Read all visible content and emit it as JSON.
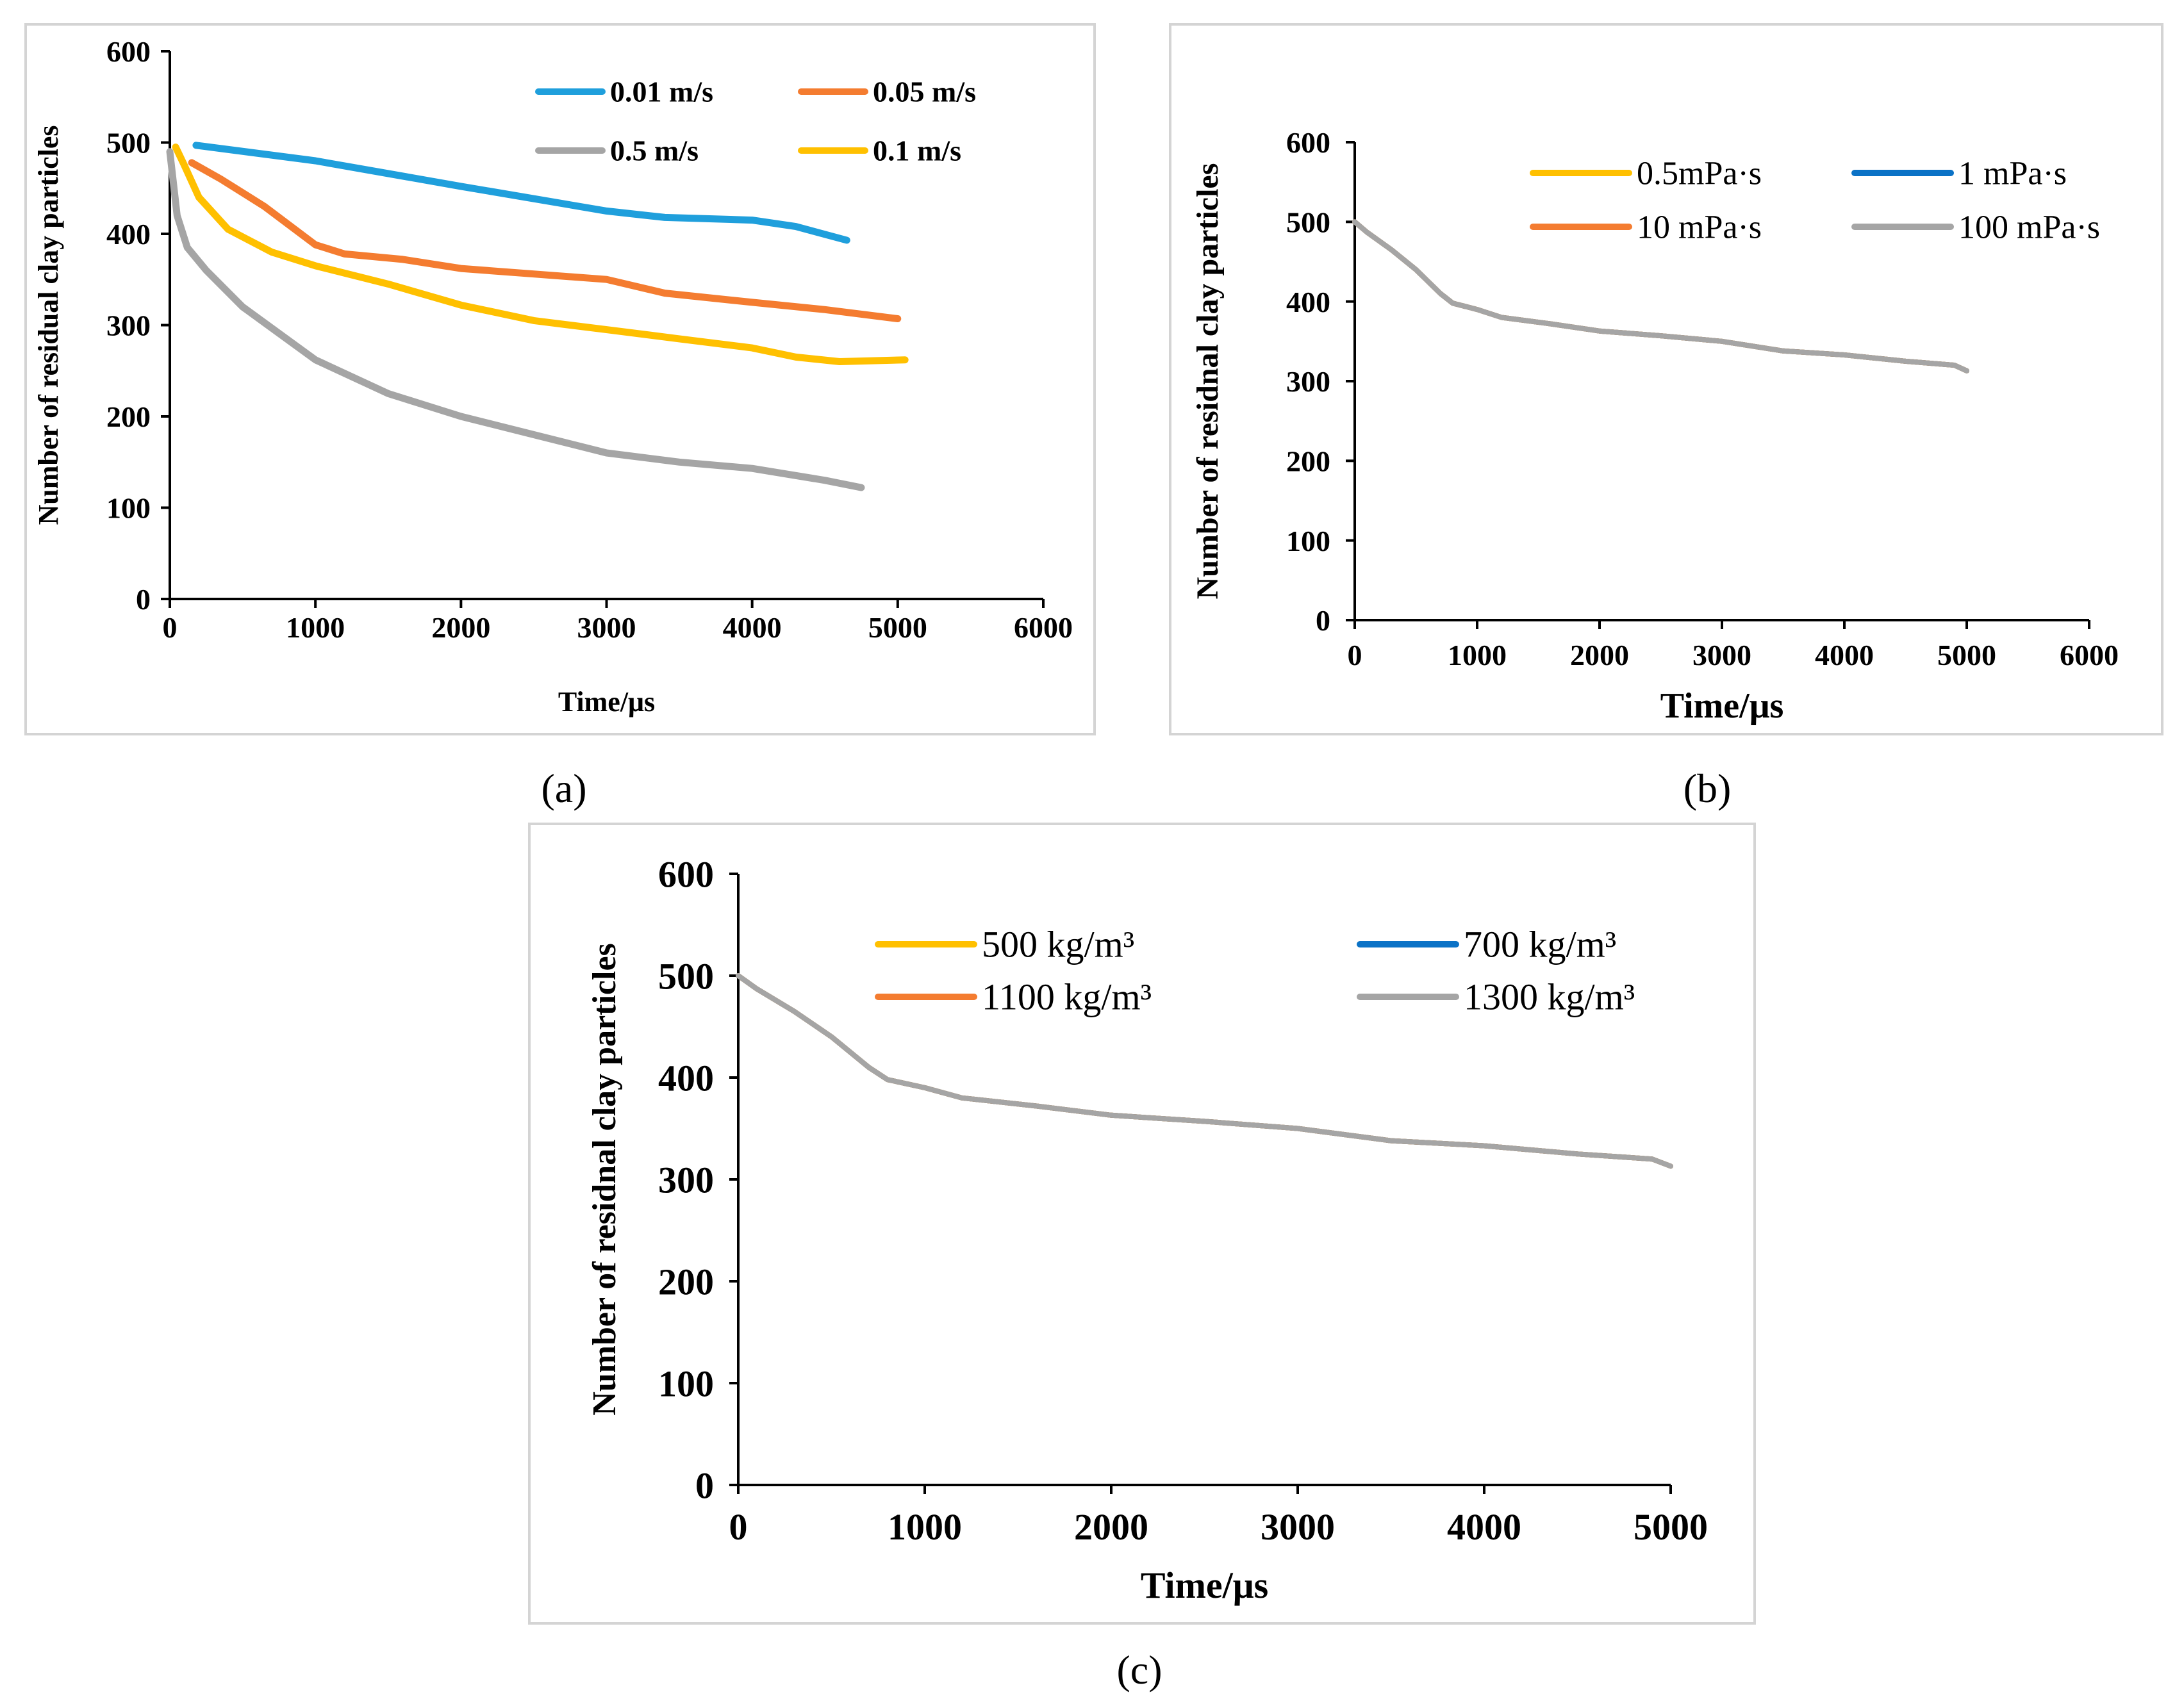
{
  "colors": {
    "blue_a": "#1f9fdc",
    "orange": "#f47c30",
    "gray": "#a5a5a5",
    "yellow": "#ffc000",
    "blue_dark": "#0b72c6",
    "frame": "#d4d4d4"
  },
  "chart_data": [
    {
      "id": "a",
      "panel_label": "(a)",
      "type": "line",
      "title": "",
      "xlabel": "Time/μs",
      "ylabel": "Number of residual clay particles",
      "xlim": [
        0,
        6000
      ],
      "ylim": [
        0,
        600
      ],
      "x_ticks": [
        "0",
        "1000",
        "2000",
        "3000",
        "4000",
        "5000",
        "6000"
      ],
      "y_ticks": [
        "0",
        "100",
        "200",
        "300",
        "400",
        "500",
        "600"
      ],
      "legend": [
        "0.01 m/s",
        "0.05 m/s",
        "0.5 m/s",
        "0.1 m/s"
      ],
      "series": [
        {
          "name": "0.01 m/s",
          "color": "#1f9fdc",
          "x": [
            180,
            1000,
            2000,
            3000,
            3400,
            4000,
            4300,
            4650
          ],
          "y": [
            497,
            480,
            452,
            425,
            418,
            415,
            408,
            393
          ]
        },
        {
          "name": "0.05 m/s",
          "color": "#f47c30",
          "x": [
            150,
            350,
            650,
            1000,
            1200,
            1600,
            2000,
            2500,
            3000,
            3400,
            4000,
            4500,
            5000
          ],
          "y": [
            478,
            460,
            430,
            388,
            378,
            372,
            362,
            356,
            350,
            335,
            325,
            317,
            307
          ]
        },
        {
          "name": "0.5 m/s",
          "color": "#a5a5a5",
          "x": [
            0,
            50,
            120,
            250,
            500,
            1000,
            1500,
            2000,
            2500,
            3000,
            3500,
            4000,
            4500,
            4750
          ],
          "y": [
            490,
            420,
            385,
            360,
            320,
            262,
            225,
            200,
            180,
            160,
            150,
            143,
            130,
            122
          ]
        },
        {
          "name": "0.1 m/s",
          "color": "#ffc000",
          "x": [
            40,
            100,
            200,
            400,
            700,
            1000,
            1500,
            2000,
            2500,
            3000,
            3500,
            4000,
            4300,
            4600,
            5050
          ],
          "y": [
            495,
            475,
            440,
            405,
            380,
            365,
            345,
            322,
            305,
            295,
            285,
            275,
            265,
            260,
            262
          ]
        }
      ]
    },
    {
      "id": "b",
      "panel_label": "(b)",
      "type": "line",
      "title": "",
      "xlabel": "Time/μs",
      "ylabel": "Number of residnal clay particles",
      "xlim": [
        0,
        6000
      ],
      "ylim": [
        0,
        600
      ],
      "x_ticks": [
        "0",
        "1000",
        "2000",
        "3000",
        "4000",
        "5000",
        "6000"
      ],
      "y_ticks": [
        "0",
        "100",
        "200",
        "300",
        "400",
        "500",
        "600"
      ],
      "legend": [
        "0.5mPa·s",
        "1 mPa·s",
        "10 mPa·s",
        "100 mPa·s"
      ],
      "series": [
        {
          "name": "0.5mPa·s",
          "color": "#ffc000",
          "x": [
            0,
            100,
            300,
            500,
            700,
            800,
            1000,
            1200,
            1600,
            2000,
            2500,
            3000,
            3500,
            4000,
            4500,
            4900,
            5000
          ],
          "y": [
            500,
            487,
            465,
            440,
            410,
            398,
            390,
            380,
            372,
            363,
            357,
            350,
            338,
            333,
            325,
            320,
            313
          ]
        },
        {
          "name": "1 mPa·s",
          "color": "#0b72c6",
          "x": [
            0,
            100,
            300,
            500,
            700,
            800,
            1000,
            1200,
            1600,
            2000,
            2500,
            3000,
            3500,
            4000,
            4500,
            4900,
            5000
          ],
          "y": [
            500,
            487,
            465,
            440,
            410,
            398,
            390,
            380,
            372,
            363,
            357,
            350,
            338,
            333,
            325,
            320,
            313
          ]
        },
        {
          "name": "10 mPa·s",
          "color": "#f47c30",
          "x": [
            0,
            100,
            300,
            500,
            700,
            800,
            1000,
            1200,
            1600,
            2000,
            2500,
            3000,
            3500,
            4000,
            4500,
            4900,
            5000
          ],
          "y": [
            500,
            487,
            465,
            440,
            410,
            398,
            390,
            380,
            372,
            363,
            357,
            350,
            338,
            333,
            325,
            320,
            313
          ]
        },
        {
          "name": "100 mPa·s",
          "color": "#a5a5a5",
          "x": [
            0,
            100,
            300,
            500,
            700,
            800,
            1000,
            1200,
            1600,
            2000,
            2500,
            3000,
            3500,
            4000,
            4500,
            4900,
            5000
          ],
          "y": [
            500,
            487,
            465,
            440,
            410,
            398,
            390,
            380,
            372,
            363,
            357,
            350,
            338,
            333,
            325,
            320,
            313
          ]
        }
      ]
    },
    {
      "id": "c",
      "panel_label": "(c)",
      "type": "line",
      "title": "",
      "xlabel": "Time/μs",
      "ylabel": "Number of residnal clay particles",
      "xlim": [
        0,
        5000
      ],
      "ylim": [
        0,
        600
      ],
      "x_ticks": [
        "0",
        "1000",
        "2000",
        "3000",
        "4000",
        "5000"
      ],
      "y_ticks": [
        "0",
        "100",
        "200",
        "300",
        "400",
        "500",
        "600"
      ],
      "legend": [
        "500 kg/m³",
        "700 kg/m³",
        "1100 kg/m³",
        "1300 kg/m³"
      ],
      "series": [
        {
          "name": "500 kg/m³",
          "color": "#ffc000",
          "x": [
            0,
            100,
            300,
            500,
            700,
            800,
            1000,
            1200,
            1600,
            2000,
            2500,
            3000,
            3500,
            4000,
            4500,
            4900,
            5000
          ],
          "y": [
            500,
            487,
            465,
            440,
            410,
            398,
            390,
            380,
            372,
            363,
            357,
            350,
            338,
            333,
            325,
            320,
            313
          ]
        },
        {
          "name": "700 kg/m³",
          "color": "#0b72c6",
          "x": [
            0,
            100,
            300,
            500,
            700,
            800,
            1000,
            1200,
            1600,
            2000,
            2500,
            3000,
            3500,
            4000,
            4500,
            4900,
            5000
          ],
          "y": [
            500,
            487,
            465,
            440,
            410,
            398,
            390,
            380,
            372,
            363,
            357,
            350,
            338,
            333,
            325,
            320,
            313
          ]
        },
        {
          "name": "1100 kg/m³",
          "color": "#f47c30",
          "x": [
            0,
            100,
            300,
            500,
            700,
            800,
            1000,
            1200,
            1600,
            2000,
            2500,
            3000,
            3500,
            4000,
            4500,
            4900,
            5000
          ],
          "y": [
            500,
            487,
            465,
            440,
            410,
            398,
            390,
            380,
            372,
            363,
            357,
            350,
            338,
            333,
            325,
            320,
            313
          ]
        },
        {
          "name": "1300 kg/m³",
          "color": "#a5a5a5",
          "x": [
            0,
            100,
            300,
            500,
            700,
            800,
            1000,
            1200,
            1600,
            2000,
            2500,
            3000,
            3500,
            4000,
            4500,
            4900,
            5000
          ],
          "y": [
            500,
            487,
            465,
            440,
            410,
            398,
            390,
            380,
            372,
            363,
            357,
            350,
            338,
            333,
            325,
            320,
            313
          ]
        }
      ]
    }
  ]
}
